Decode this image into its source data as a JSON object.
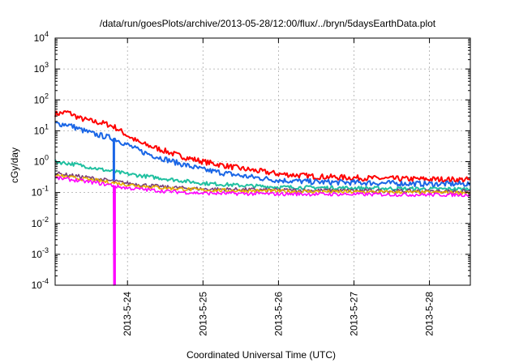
{
  "chart_data": {
    "type": "line",
    "title": "/data/run/goesPlots/archive/2013-05-28/12:00/flux/../bryn/5daysEarthData.plot",
    "xlabel": "Coordinated Universal Time (UTC)",
    "ylabel": "cGy/day",
    "yscale": "log",
    "ylim": [
      0.0001,
      10000
    ],
    "xlim": [
      "2013-05-23T01:00",
      "2013-05-28T13:00"
    ],
    "grid": true,
    "x_ticks": [
      "2013-5-24",
      "2013-5-25",
      "2013-5-26",
      "2013-5-27",
      "2013-5-28"
    ],
    "x_tick_dates": [
      "2013-05-24T00:00",
      "2013-05-25T00:00",
      "2013-05-26T00:00",
      "2013-05-27T00:00",
      "2013-05-28T00:00"
    ],
    "y_ticks": [
      {
        "value": 0.0001,
        "base": "10",
        "exp": "-4"
      },
      {
        "value": 0.001,
        "base": "10",
        "exp": "-3"
      },
      {
        "value": 0.01,
        "base": "10",
        "exp": "-2"
      },
      {
        "value": 0.1,
        "base": "10",
        "exp": "-1"
      },
      {
        "value": 1,
        "base": "10",
        "exp": "0"
      },
      {
        "value": 10,
        "base": "10",
        "exp": "1"
      },
      {
        "value": 100,
        "base": "10",
        "exp": "2"
      },
      {
        "value": 1000,
        "base": "10",
        "exp": "3"
      },
      {
        "value": 10000,
        "base": "10",
        "exp": "4"
      }
    ],
    "series": [
      {
        "color": "#ff0000",
        "x": [
          "2013-05-23T01:00",
          "2013-05-23T05:00",
          "2013-05-23T09:00",
          "2013-05-23T13:00",
          "2013-05-23T17:00",
          "2013-05-23T20:00",
          "2013-05-24T00:00",
          "2013-05-24T04:00",
          "2013-05-24T08:00",
          "2013-05-24T12:00",
          "2013-05-24T16:00",
          "2013-05-25T00:00",
          "2013-05-25T12:00",
          "2013-05-26T00:00",
          "2013-05-26T12:00",
          "2013-05-27T00:00",
          "2013-05-27T12:00",
          "2013-05-28T00:00",
          "2013-05-28T13:00"
        ],
        "y": [
          35,
          40,
          25,
          20,
          17,
          13,
          7,
          4,
          3,
          2.2,
          1.6,
          1,
          0.6,
          0.4,
          0.33,
          0.3,
          0.28,
          0.27,
          0.26
        ]
      },
      {
        "color": "#1a66e6",
        "x": [
          "2013-05-23T01:00",
          "2013-05-23T05:00",
          "2013-05-23T09:00",
          "2013-05-23T13:00",
          "2013-05-23T17:00",
          "2013-05-23T20:00",
          "2013-05-24T00:00",
          "2013-05-24T04:00",
          "2013-05-24T08:00",
          "2013-05-24T12:00",
          "2013-05-24T16:00",
          "2013-05-25T00:00",
          "2013-05-25T12:00",
          "2013-05-26T00:00",
          "2013-05-26T12:00",
          "2013-05-27T00:00",
          "2013-05-27T12:00",
          "2013-05-28T00:00",
          "2013-05-28T13:00"
        ],
        "y": [
          17,
          16,
          11,
          8,
          6.5,
          5.5,
          3.5,
          2.2,
          1.6,
          1.2,
          0.9,
          0.55,
          0.35,
          0.25,
          0.22,
          0.21,
          0.2,
          0.19,
          0.19
        ]
      },
      {
        "color": "#20c0a0",
        "x": [
          "2013-05-23T01:00",
          "2013-05-23T08:00",
          "2013-05-23T16:00",
          "2013-05-24T00:00",
          "2013-05-24T12:00",
          "2013-05-25T00:00",
          "2013-05-25T12:00",
          "2013-05-26T00:00",
          "2013-05-27T00:00",
          "2013-05-28T00:00",
          "2013-05-28T13:00"
        ],
        "y": [
          1.0,
          0.8,
          0.55,
          0.4,
          0.28,
          0.2,
          0.17,
          0.15,
          0.14,
          0.13,
          0.13
        ]
      },
      {
        "color": "#7a3f7a",
        "x": [
          "2013-05-23T01:00",
          "2013-05-23T12:00",
          "2013-05-24T00:00",
          "2013-05-24T12:00",
          "2013-05-25T00:00",
          "2013-05-26T00:00",
          "2013-05-27T00:00",
          "2013-05-28T00:00",
          "2013-05-28T13:00"
        ],
        "y": [
          0.42,
          0.3,
          0.2,
          0.15,
          0.13,
          0.12,
          0.115,
          0.11,
          0.11
        ]
      },
      {
        "color": "#e8b000",
        "x": [
          "2013-05-23T01:00",
          "2013-05-23T12:00",
          "2013-05-24T00:00",
          "2013-05-24T12:00",
          "2013-05-25T00:00",
          "2013-05-26T00:00",
          "2013-05-27T00:00",
          "2013-05-28T00:00",
          "2013-05-28T13:00"
        ],
        "y": [
          0.35,
          0.26,
          0.18,
          0.14,
          0.12,
          0.11,
          0.105,
          0.1,
          0.1
        ]
      },
      {
        "color": "#ff00ff",
        "x": [
          "2013-05-23T01:00",
          "2013-05-23T12:00",
          "2013-05-23T19:30",
          "2013-05-23T19:40",
          "2013-05-23T19:50",
          "2013-05-24T00:00",
          "2013-05-24T12:00",
          "2013-05-25T00:00",
          "2013-05-26T00:00",
          "2013-05-27T00:00",
          "2013-05-28T00:00",
          "2013-05-28T13:00"
        ],
        "y": [
          0.3,
          0.22,
          0.17,
          0.0001,
          0.16,
          0.14,
          0.11,
          0.095,
          0.09,
          0.088,
          0.085,
          0.085
        ]
      }
    ]
  }
}
